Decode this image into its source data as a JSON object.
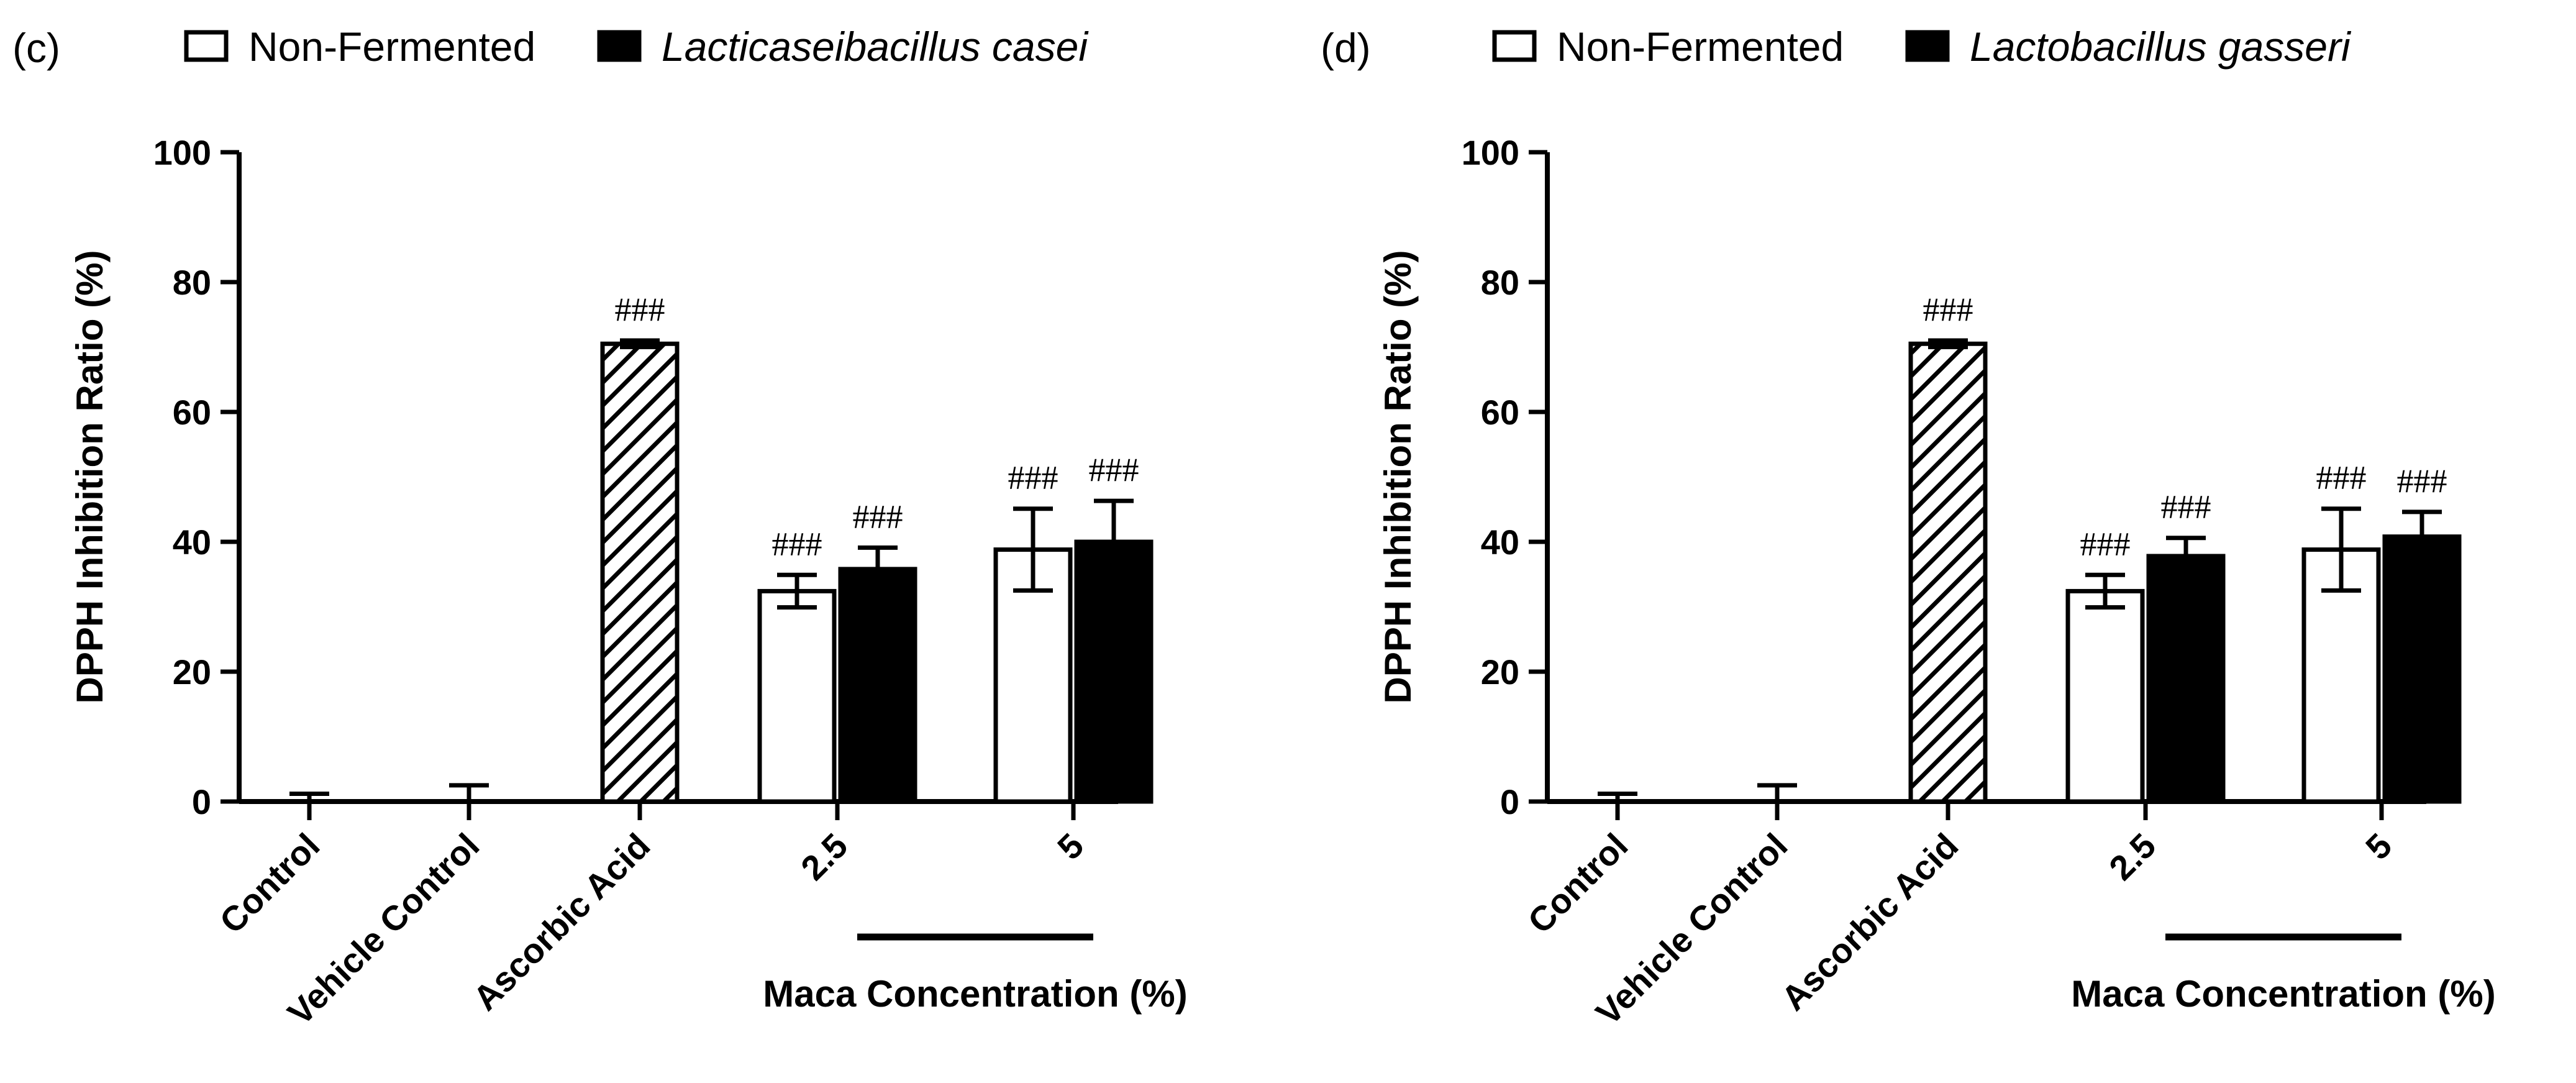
{
  "chart_data": [
    {
      "type": "bar",
      "panel_label": "(c)",
      "legend": [
        {
          "name": "Non-Fermented",
          "fill": "#ffffff",
          "italic": false
        },
        {
          "name": "Lacticaseibacillus casei",
          "fill": "#000000",
          "italic": true
        }
      ],
      "ylabel": "DPPH Inhibition  Ratio (%)",
      "ylim": [
        0,
        100
      ],
      "yticks": [
        "0",
        "20",
        "40",
        "60",
        "80",
        "100"
      ],
      "ytick_values": [
        0,
        20,
        40,
        60,
        80,
        100
      ],
      "xgroup_label": "Maca Concentration (%)",
      "categories": [
        "Control",
        "Vehicle Control",
        "Ascorbic Acid",
        "2.5",
        "5"
      ],
      "bars": [
        {
          "category": "Control",
          "series": "Non-Fermented",
          "value": 0,
          "error": 1.2,
          "fill": "#ffffff",
          "annotation": ""
        },
        {
          "category": "Vehicle Control",
          "series": "Non-Fermented",
          "value": 0,
          "error": 2.5,
          "fill": "#ffffff",
          "annotation": ""
        },
        {
          "category": "Ascorbic Acid",
          "series": "Ascorbic Acid",
          "value": 70.5,
          "error": 0.5,
          "fill": "hatch",
          "annotation": "###"
        },
        {
          "category": "2.5",
          "series": "Non-Fermented",
          "value": 32.4,
          "error": 2.5,
          "fill": "#ffffff",
          "annotation": "###"
        },
        {
          "category": "2.5",
          "series": "Lacticaseibacillus casei",
          "value": 35.8,
          "error": 3.3,
          "fill": "#000000",
          "annotation": "###"
        },
        {
          "category": "5",
          "series": "Non-Fermented",
          "value": 38.8,
          "error": 6.3,
          "fill": "#ffffff",
          "annotation": "###"
        },
        {
          "category": "5",
          "series": "Lacticaseibacillus casei",
          "value": 40.0,
          "error": 6.3,
          "fill": "#000000",
          "annotation": "###"
        }
      ]
    },
    {
      "type": "bar",
      "panel_label": "(d)",
      "legend": [
        {
          "name": "Non-Fermented",
          "fill": "#ffffff",
          "italic": false
        },
        {
          "name": "Lactobacillus gasseri",
          "fill": "#000000",
          "italic": true
        }
      ],
      "ylabel": "DPPH Inhibition  Ratio (%)",
      "ylim": [
        0,
        100
      ],
      "yticks": [
        "0",
        "20",
        "40",
        "60",
        "80",
        "100"
      ],
      "ytick_values": [
        0,
        20,
        40,
        60,
        80,
        100
      ],
      "xgroup_label": "Maca Concentration (%)",
      "categories": [
        "Control",
        "Vehicle Control",
        "Ascorbic Acid",
        "2.5",
        "5"
      ],
      "bars": [
        {
          "category": "Control",
          "series": "Non-Fermented",
          "value": 0,
          "error": 1.2,
          "fill": "#ffffff",
          "annotation": ""
        },
        {
          "category": "Vehicle Control",
          "series": "Non-Fermented",
          "value": 0,
          "error": 2.5,
          "fill": "#ffffff",
          "annotation": ""
        },
        {
          "category": "Ascorbic Acid",
          "series": "Ascorbic Acid",
          "value": 70.5,
          "error": 0.5,
          "fill": "hatch",
          "annotation": "###"
        },
        {
          "category": "2.5",
          "series": "Non-Fermented",
          "value": 32.4,
          "error": 2.5,
          "fill": "#ffffff",
          "annotation": "###"
        },
        {
          "category": "2.5",
          "series": "Lactobacillus gasseri",
          "value": 37.8,
          "error": 2.8,
          "fill": "#000000",
          "annotation": "###"
        },
        {
          "category": "5",
          "series": "Non-Fermented",
          "value": 38.8,
          "error": 6.3,
          "fill": "#ffffff",
          "annotation": "###"
        },
        {
          "category": "5",
          "series": "Lactobacillus gasseri",
          "value": 40.8,
          "error": 3.8,
          "fill": "#000000",
          "annotation": "###"
        }
      ]
    }
  ]
}
